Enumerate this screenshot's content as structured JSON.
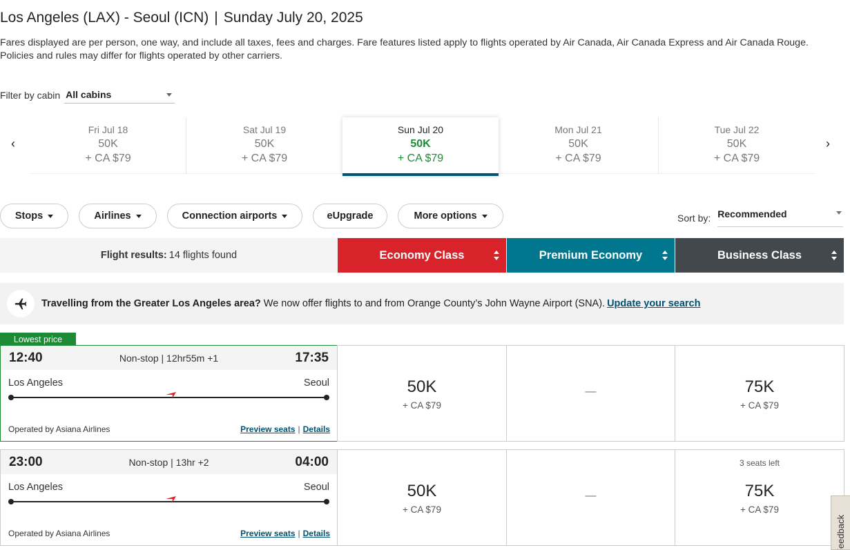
{
  "header": {
    "route": "Los Angeles (LAX) - Seoul (ICN)",
    "separator": "|",
    "date": "Sunday July 20, 2025",
    "notice": "Fares displayed are per person, one way, and include all taxes, fees and charges. Fare features listed apply to flights operated by Air Canada, Air Canada Express and Air Canada Rouge. Policies and rules may differ for flights operated by other carriers."
  },
  "filter": {
    "label": "Filter by cabin",
    "value": "All cabins"
  },
  "dates": [
    {
      "day": "Fri Jul 18",
      "points": "50K",
      "cash": "+ CA $79",
      "active": false
    },
    {
      "day": "Sat Jul 19",
      "points": "50K",
      "cash": "+ CA $79",
      "active": false
    },
    {
      "day": "Sun Jul 20",
      "points": "50K",
      "cash": "+ CA $79",
      "active": true
    },
    {
      "day": "Mon Jul 21",
      "points": "50K",
      "cash": "+ CA $79",
      "active": false
    },
    {
      "day": "Tue Jul 22",
      "points": "50K",
      "cash": "+ CA $79",
      "active": false
    }
  ],
  "date_nav": {
    "prev": "‹",
    "next": "›"
  },
  "filters": [
    "Stops",
    "Airlines",
    "Connection airports",
    "eUpgrade",
    "More options"
  ],
  "sort": {
    "label": "Sort by:",
    "value": "Recommended"
  },
  "results": {
    "label": "Flight results:",
    "count": "14 flights found"
  },
  "cabins": [
    {
      "label": "Economy Class",
      "color": "#d8232a"
    },
    {
      "label": "Premium Economy",
      "color": "#00778f"
    },
    {
      "label": "Business Class",
      "color": "#43484c"
    }
  ],
  "banner": {
    "icon": "airplane-icon",
    "bold": "Travelling from the Greater Los Angeles area?",
    "text": "We now offer flights to and from Orange County’s John Wayne Airport (SNA).",
    "link": "Update your search"
  },
  "lowest_badge": "Lowest price",
  "flights": [
    {
      "depart": "12:40",
      "duration": "Non-stop | 12hr55m +1",
      "arrive": "17:35",
      "origin": "Los Angeles",
      "destination": "Seoul",
      "operator": "Operated by Asiana Airlines",
      "preview": "Preview seats",
      "divider": "|",
      "details": "Details",
      "economy": {
        "points": "50K",
        "cash": "+ CA $79"
      },
      "premium": {
        "dash": "—"
      },
      "business": {
        "points": "75K",
        "cash": "+ CA $79",
        "seats": ""
      }
    },
    {
      "depart": "23:00",
      "duration": "Non-stop | 13hr +2",
      "arrive": "04:00",
      "origin": "Los Angeles",
      "destination": "Seoul",
      "operator": "Operated by Asiana Airlines",
      "preview": "Preview seats",
      "divider": "|",
      "details": "Details",
      "economy": {
        "points": "50K",
        "cash": "+ CA $79"
      },
      "premium": {
        "dash": "—"
      },
      "business": {
        "points": "75K",
        "cash": "+ CA $79",
        "seats": "3 seats left"
      }
    }
  ],
  "feedback": "Feedback",
  "colors": {
    "accent": "#005374",
    "green": "#1d8a36",
    "plane": "#d8232a"
  }
}
